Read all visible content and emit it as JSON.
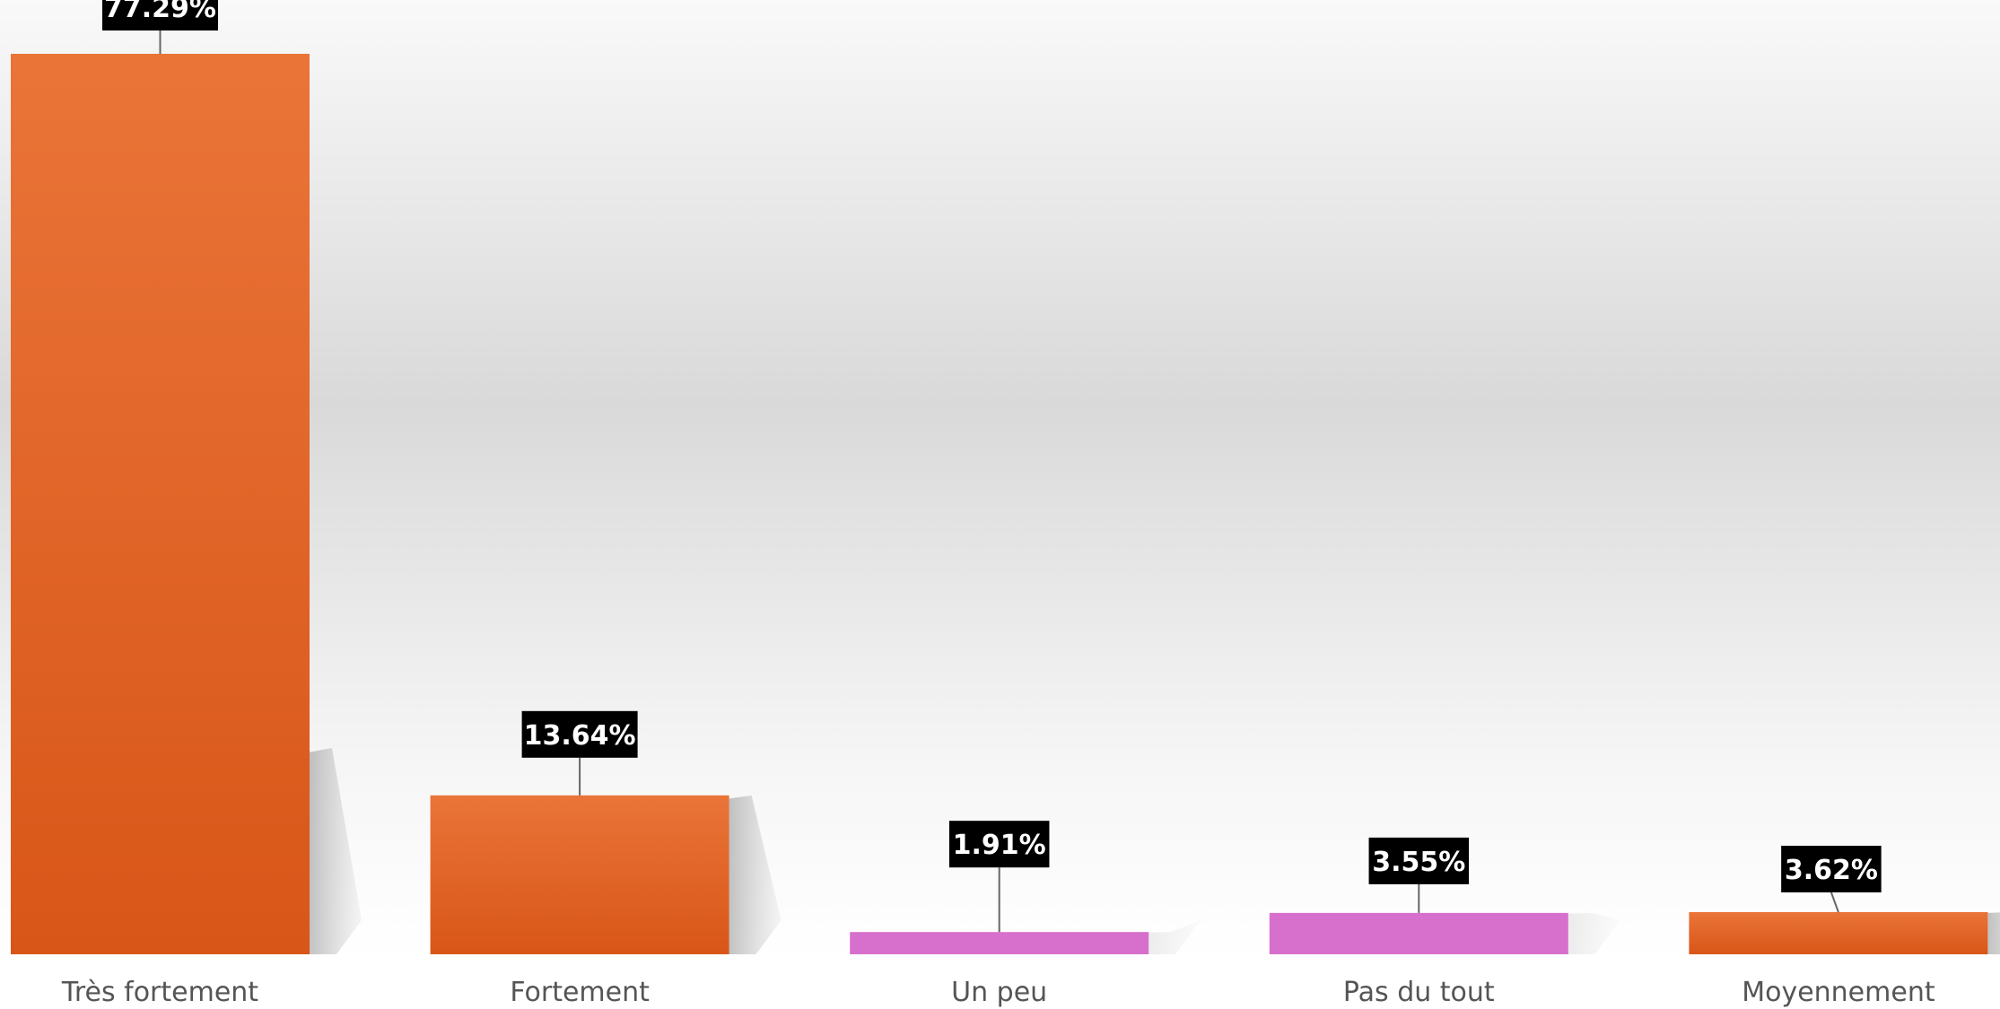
{
  "chart_data": {
    "type": "bar",
    "categories": [
      "Très fortement",
      "Fortement",
      "Un peu",
      "Pas du tout",
      "Moyennement"
    ],
    "values": [
      77.29,
      13.64,
      1.91,
      3.55,
      3.62
    ],
    "data_labels": [
      "77.29%",
      "13.64%",
      "1.91%",
      "3.55%",
      "3.62%"
    ],
    "unit": "%",
    "ylim": [
      0,
      77.29
    ],
    "grid": false,
    "legend": "none",
    "colors": [
      "#e2632a",
      "#e2632a",
      "#d670cc",
      "#d670cc",
      "#e2632a"
    ],
    "orange_top": "#ea7438",
    "orange_bottom": "#d85618",
    "pink": "#d670cc",
    "label_box_color": "#000000",
    "label_text_color": "#ffffff",
    "category_text_color": "#555555"
  }
}
